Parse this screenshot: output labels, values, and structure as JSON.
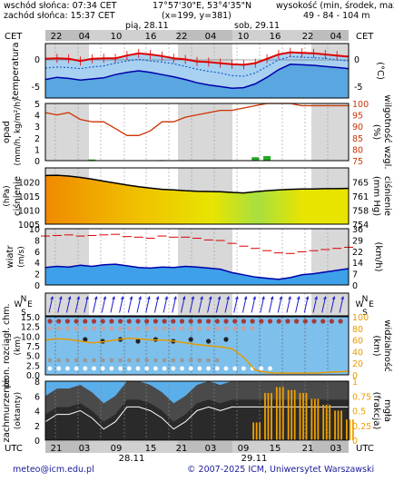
{
  "header": {
    "sunrise": "wschód słońca: 07:34 CET",
    "sunset": "zachód słońca: 15:37 CET",
    "coords": "17°57'30\"E, 53°4'35\"N",
    "grid": "(x=199, y=381)",
    "elevation_label": "wysokość (min, środek, max)",
    "elevation_values": "49 - 84 - 104 m"
  },
  "top_axis": {
    "tz_left": "CET",
    "tz_right": "CET",
    "day1": "pią, 28.11",
    "day2": "sob, 29.11",
    "hours": [
      "22",
      "04",
      "10",
      "16",
      "22",
      "04",
      "10",
      "16",
      "22",
      "04"
    ]
  },
  "bottom_axis": {
    "tz_left": "UTC",
    "tz_right": "UTC",
    "hours": [
      "21",
      "03",
      "09",
      "15",
      "21",
      "03",
      "09",
      "15",
      "21",
      "03"
    ],
    "day1": "28.11",
    "day2": "29.11"
  },
  "footer": {
    "email": "meteo@icm.edu.pl",
    "copyright": "© 2007-2025 ICM, Uniwersytet Warszawski"
  },
  "panel_labels": {
    "temperature": "temperatura",
    "temperature_unit": "(°C)",
    "precip": "opad",
    "precip_unit": "(mm/h, kg/m²/h)",
    "humidity_unit": "(%)",
    "humidity": "wilgotność wzgl.",
    "pressure": "ciśnienie",
    "pressure_unit": "(hPa)",
    "pressure_unit2": "(mm Hg)",
    "pressure2": "ciśnienie",
    "wind": "wiatr",
    "wind_unit": "(m/s)",
    "wind_unit2": "(km/h)",
    "cloudbase": "pion. rozciągł. chm.",
    "cloudbase_unit": "(km)",
    "visibility": "widzialność",
    "visibility_unit": "(km)",
    "cloudcover": "zachmurzenie",
    "cloudcover_unit": "(oktanty)",
    "fog_unit": "(frakcja)",
    "fog": "mgła",
    "compass": {
      "w": "W",
      "e": "E",
      "n": "N",
      "s": "S"
    }
  },
  "chart_data": [
    {
      "type": "line",
      "title": "temperatura",
      "ylabel": "(°C)",
      "yticks": [
        "0",
        "-5"
      ],
      "ylim": [
        -7,
        3
      ],
      "series": [
        {
          "name": "max",
          "color": "#dd0000",
          "values": [
            0.2,
            0.3,
            0.2,
            -0.2,
            0.2,
            0.3,
            0.3,
            0.8,
            1.2,
            1.0,
            0.7,
            0.3,
            0.1,
            -0.3,
            -0.4,
            -0.6,
            -0.8,
            -0.9,
            -0.6,
            0.2,
            1.0,
            1.4,
            1.3,
            1.2,
            1.0,
            0.8,
            0.6
          ]
        },
        {
          "name": "avg",
          "color": "#1a5fd0",
          "values": [
            -1.5,
            -1.3,
            -1.4,
            -1.6,
            -1.3,
            -1.1,
            -0.6,
            -0.2,
            0.1,
            -0.2,
            -0.4,
            -0.7,
            -1.2,
            -1.7,
            -2.1,
            -2.4,
            -2.9,
            -3.0,
            -2.4,
            -1.2,
            0.0,
            0.6,
            0.5,
            0.4,
            0.3,
            0.0,
            -0.2
          ]
        },
        {
          "name": "min",
          "color": "#0000aa",
          "values": [
            -3.6,
            -3.2,
            -3.4,
            -3.7,
            -3.5,
            -3.3,
            -2.7,
            -2.3,
            -2.0,
            -2.3,
            -2.7,
            -3.1,
            -3.6,
            -4.2,
            -4.6,
            -4.9,
            -5.2,
            -5.1,
            -4.4,
            -3.2,
            -1.8,
            -0.8,
            -0.9,
            -1.0,
            -1.2,
            -1.4,
            -1.6
          ]
        }
      ]
    },
    {
      "type": "line",
      "title": "opad / wilgotność wzgl.",
      "ylabel": "(mm/h, kg/m²/h)",
      "yticks": [
        "5",
        "4",
        "3",
        "2",
        "1",
        "0"
      ],
      "y2ticks": [
        "100",
        "95",
        "90",
        "85",
        "80",
        "75"
      ],
      "series": [
        {
          "name": "wilgotność wzgl.",
          "color": "#cc3300",
          "values": [
            96,
            95,
            96,
            93,
            92,
            92,
            89,
            86,
            86,
            88,
            92,
            92,
            94,
            95,
            96,
            97,
            97,
            98,
            99,
            100,
            100,
            100,
            99,
            99,
            99,
            99,
            99
          ]
        },
        {
          "name": "opad",
          "color": "#22aa22",
          "values": [
            0,
            0,
            0,
            0,
            0.1,
            0,
            0,
            0,
            0,
            0,
            0.05,
            0,
            0,
            0,
            0,
            0,
            0,
            0,
            0.3,
            0.4,
            0,
            0,
            0,
            0,
            0,
            0,
            0
          ]
        }
      ]
    },
    {
      "type": "area",
      "title": "ciśnienie",
      "ylabel": "(hPa)",
      "yticks": [
        "1020",
        "1015",
        "1010",
        "1005"
      ],
      "y2ticks": [
        "765",
        "761",
        "758",
        "754"
      ],
      "ylim": [
        1005,
        1025
      ],
      "series": [
        {
          "name": "ciśnienie",
          "color": "#000000",
          "values": [
            1022.3,
            1022.4,
            1022.1,
            1021.6,
            1021.0,
            1020.3,
            1019.6,
            1018.9,
            1018.3,
            1017.8,
            1017.4,
            1017.2,
            1016.9,
            1016.7,
            1016.6,
            1016.5,
            1016.3,
            1016.1,
            1016.5,
            1016.9,
            1017.2,
            1017.4,
            1017.5,
            1017.5,
            1017.6,
            1017.6,
            1017.7
          ]
        }
      ]
    },
    {
      "type": "area",
      "title": "wiatr",
      "ylabel": "(m/s)",
      "yticks": [
        "10",
        "8",
        "6",
        "4",
        "2",
        "0"
      ],
      "y2ticks": [
        "36",
        "29",
        "22",
        "14",
        "7",
        "0"
      ],
      "ylim": [
        0,
        10
      ],
      "series": [
        {
          "name": "wiatr",
          "color": "#0000aa",
          "values": [
            3.1,
            3.3,
            3.2,
            3.5,
            3.3,
            3.6,
            3.7,
            3.4,
            3.1,
            3.0,
            3.2,
            3.1,
            3.3,
            3.2,
            3.0,
            2.8,
            2.2,
            1.8,
            1.4,
            1.2,
            1.0,
            1.3,
            1.8,
            2.0,
            2.3,
            2.6,
            2.9
          ]
        },
        {
          "name": "porywy",
          "color": "#dd0000",
          "values": [
            8.7,
            8.8,
            8.9,
            8.7,
            8.8,
            8.9,
            9.0,
            8.6,
            8.5,
            8.3,
            8.7,
            8.5,
            8.5,
            8.3,
            8.0,
            7.9,
            7.4,
            6.9,
            6.5,
            6.1,
            5.7,
            5.6,
            5.9,
            6.1,
            6.3,
            6.5,
            6.7
          ]
        }
      ]
    },
    {
      "type": "line",
      "title": "pion. rozciągł. chm. / widzialność",
      "ylabel": "(km)",
      "yticks": [
        "15.0",
        "12.5",
        "10.0",
        "7.5",
        "5.0",
        "2.5",
        "0.0"
      ],
      "y2ticks": [
        "100",
        "80",
        "60",
        "40",
        "20",
        "0"
      ],
      "series": [
        {
          "name": "widzialność",
          "color": "#e69a00",
          "values": [
            60,
            62,
            61,
            58,
            55,
            57,
            60,
            63,
            62,
            60,
            60,
            58,
            55,
            52,
            50,
            48,
            45,
            30,
            8,
            4,
            3,
            3,
            3,
            3,
            4,
            5,
            6
          ]
        }
      ]
    },
    {
      "type": "area",
      "title": "zachmurzenie / mgła",
      "ylabel": "(oktanty)",
      "yticks": [
        "8",
        "6",
        "4",
        "2",
        "0"
      ],
      "y2ticks": [
        "1",
        "0.75",
        "0.5",
        "0.25",
        "0"
      ],
      "series": [
        {
          "name": "zachmurzenie",
          "color": "#555555",
          "values": [
            6,
            7,
            7,
            7.5,
            6.5,
            5,
            6,
            8,
            8,
            7.5,
            6.5,
            5,
            6,
            7.5,
            8,
            7.5,
            8,
            8,
            8,
            8,
            8,
            8,
            8,
            8,
            8,
            8,
            8
          ]
        },
        {
          "name": "mgła",
          "color": "#f0a000",
          "values": [
            0,
            0,
            0,
            0,
            0,
            0,
            0,
            0,
            0,
            0,
            0,
            0,
            0,
            0,
            0,
            0,
            0,
            0,
            0.3,
            0.8,
            0.9,
            0.85,
            0.8,
            0.7,
            0.6,
            0.5,
            0.35
          ]
        }
      ]
    }
  ]
}
